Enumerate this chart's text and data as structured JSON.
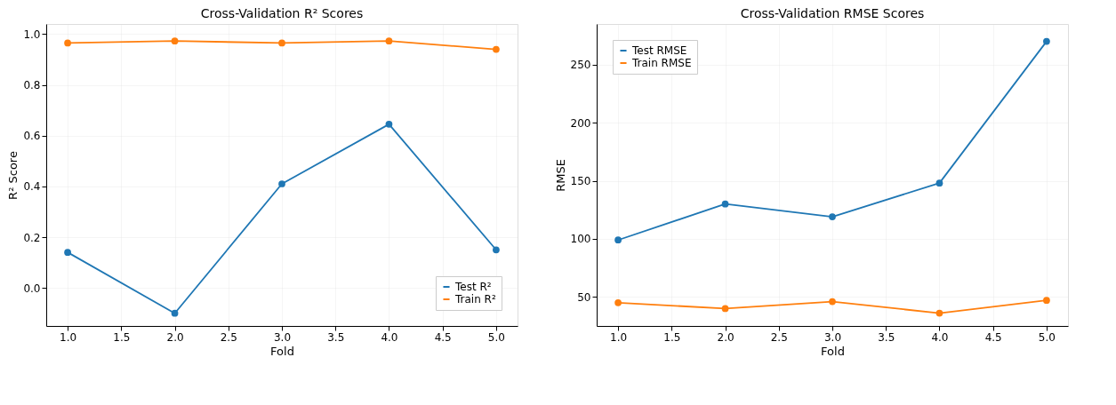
{
  "chart_data": [
    {
      "type": "line",
      "title": "Cross-Validation R² Scores",
      "xlabel": "Fold",
      "ylabel": "R² Score",
      "x": [
        1,
        2,
        3,
        4,
        5
      ],
      "series": [
        {
          "name": "Test R²",
          "color": "#1f77b4",
          "values": [
            0.14,
            -0.1,
            0.41,
            0.645,
            0.15
          ]
        },
        {
          "name": "Train R²",
          "color": "#ff7f0e",
          "values": [
            0.965,
            0.973,
            0.965,
            0.973,
            0.94
          ]
        }
      ],
      "xlim": [
        0.8,
        5.2
      ],
      "xticks": [
        {
          "value": 1,
          "label": "1.0"
        },
        {
          "value": 1.5,
          "label": "1.5"
        },
        {
          "value": 2,
          "label": "2.0"
        },
        {
          "value": 2.5,
          "label": "2.5"
        },
        {
          "value": 3,
          "label": "3.0"
        },
        {
          "value": 3.5,
          "label": "3.5"
        },
        {
          "value": 4,
          "label": "4.0"
        },
        {
          "value": 4.5,
          "label": "4.5"
        },
        {
          "value": 5,
          "label": "5.0"
        }
      ],
      "ylim": [
        -0.15,
        1.04
      ],
      "yticks": [
        {
          "value": 0,
          "label": "0.0"
        },
        {
          "value": 0.2,
          "label": "0.2"
        },
        {
          "value": 0.4,
          "label": "0.4"
        },
        {
          "value": 0.6,
          "label": "0.6"
        },
        {
          "value": 0.8,
          "label": "0.8"
        },
        {
          "value": 1,
          "label": "1.0"
        }
      ],
      "grid": true,
      "legend": "bottom right",
      "marker": "circle",
      "line_style": "solid"
    },
    {
      "type": "line",
      "title": "Cross-Validation RMSE Scores",
      "xlabel": "Fold",
      "ylabel": "RMSE",
      "x": [
        1,
        2,
        3,
        4,
        5
      ],
      "series": [
        {
          "name": "Test RMSE",
          "color": "#1f77b4",
          "values": [
            99,
            130,
            119,
            148,
            270
          ]
        },
        {
          "name": "Train RMSE",
          "color": "#ff7f0e",
          "values": [
            45,
            40,
            46,
            36,
            47
          ]
        }
      ],
      "xlim": [
        0.8,
        5.2
      ],
      "xticks": [
        {
          "value": 1,
          "label": "1.0"
        },
        {
          "value": 1.5,
          "label": "1.5"
        },
        {
          "value": 2,
          "label": "2.0"
        },
        {
          "value": 2.5,
          "label": "2.5"
        },
        {
          "value": 3,
          "label": "3.0"
        },
        {
          "value": 3.5,
          "label": "3.5"
        },
        {
          "value": 4,
          "label": "4.0"
        },
        {
          "value": 4.5,
          "label": "4.5"
        },
        {
          "value": 5,
          "label": "5.0"
        }
      ],
      "ylim": [
        25,
        285
      ],
      "yticks": [
        50,
        100,
        150,
        200,
        250
      ],
      "grid": true,
      "legend": "top left",
      "marker": "circle",
      "line_style": "solid"
    }
  ]
}
